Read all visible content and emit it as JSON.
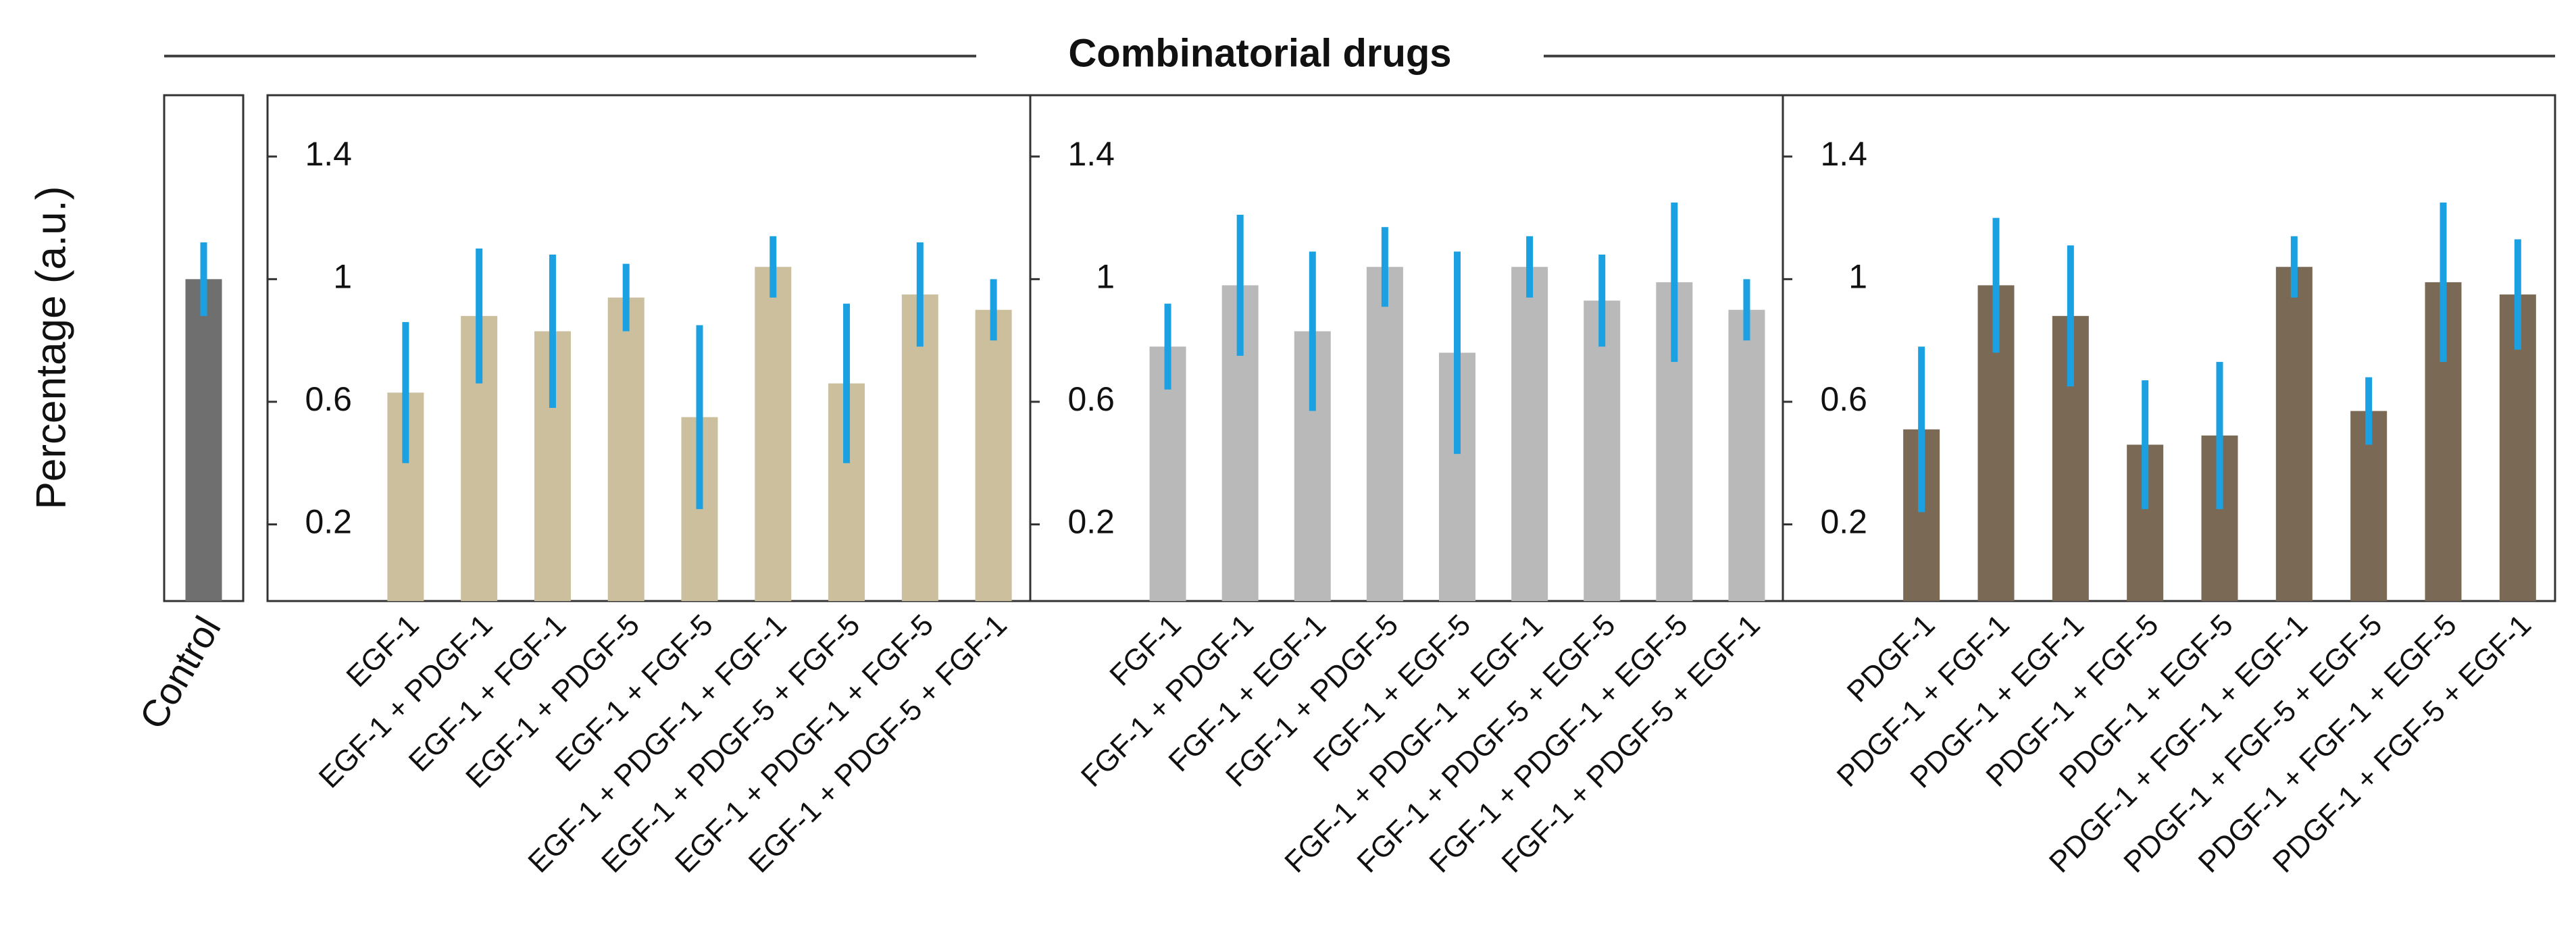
{
  "title": "Combinatorial drugs",
  "chart_data": [
    {
      "type": "bar",
      "ylabel": "Percentage (a.u.)",
      "categories": [
        "Control"
      ],
      "values": [
        1.0
      ],
      "errors": [
        0.12
      ],
      "color": "#6f6f6f",
      "error_color": "#1ba1e2",
      "ylim": [
        -0.05,
        1.6
      ]
    },
    {
      "type": "bar",
      "categories": [
        "EGF-1",
        "EGF-1 + PDGF-1",
        "EGF-1 + FGF-1",
        "EGF-1 + PDGF-5",
        "EGF-1 + FGF-5",
        "EGF-1 + PDGF-1 + FGF-1",
        "EGF-1 + PDGF-5 + FGF-5",
        "EGF-1 + PDGF-1 + FGF-5",
        "EGF-1 + PDGF-5 + FGF-1"
      ],
      "values": [
        0.63,
        0.88,
        0.83,
        0.94,
        0.55,
        1.04,
        0.66,
        0.95,
        0.9
      ],
      "errors": [
        0.23,
        0.22,
        0.25,
        0.11,
        0.3,
        0.1,
        0.26,
        0.17,
        0.1
      ],
      "color": "#cbbf9e",
      "error_color": "#1ba1e2",
      "ylim": [
        -0.05,
        1.6
      ],
      "yticks": [
        0.2,
        0.6,
        1,
        1.4
      ]
    },
    {
      "type": "bar",
      "categories": [
        "FGF-1",
        "FGF-1 + PDGF-1",
        "FGF-1 + EGF-1",
        "FGF-1 + PDGF-5",
        "FGF-1 + EGF-5",
        "FGF-1 + PDGF-1 + EGF-1",
        "FGF-1 + PDGF-5 + EGF-5",
        "FGF-1 + PDGF-1 + EGF-5",
        "FGF-1 + PDGF-5 + EGF-1"
      ],
      "values": [
        0.78,
        0.98,
        0.83,
        1.04,
        0.76,
        1.04,
        0.93,
        0.99,
        0.9
      ],
      "errors": [
        0.14,
        0.23,
        0.26,
        0.13,
        0.33,
        0.1,
        0.15,
        0.26,
        0.1
      ],
      "color": "#b9b9b9",
      "error_color": "#1ba1e2",
      "ylim": [
        -0.05,
        1.6
      ],
      "yticks": [
        0.2,
        0.6,
        1,
        1.4
      ]
    },
    {
      "type": "bar",
      "categories": [
        "PDGF-1",
        "PDGF-1 + FGF-1",
        "PDGF-1 + EGF-1",
        "PDGF-1 + FGF-5",
        "PDGF-1 + EGF-5",
        "PDGF-1 + FGF-1 + EGF-1",
        "PDGF-1 + FGF-5 + EGF-5",
        "PDGF-1 + FGF-1 + EGF-5",
        "PDGF-1 + FGF-5 + EGF-1"
      ],
      "values": [
        0.51,
        0.98,
        0.88,
        0.46,
        0.49,
        1.04,
        0.57,
        0.99,
        0.95
      ],
      "errors": [
        0.27,
        0.22,
        0.23,
        0.21,
        0.24,
        0.1,
        0.11,
        0.26,
        0.18
      ],
      "color": "#7a6a55",
      "error_color": "#1ba1e2",
      "ylim": [
        -0.05,
        1.6
      ],
      "yticks": [
        0.2,
        0.6,
        1,
        1.4
      ]
    }
  ]
}
